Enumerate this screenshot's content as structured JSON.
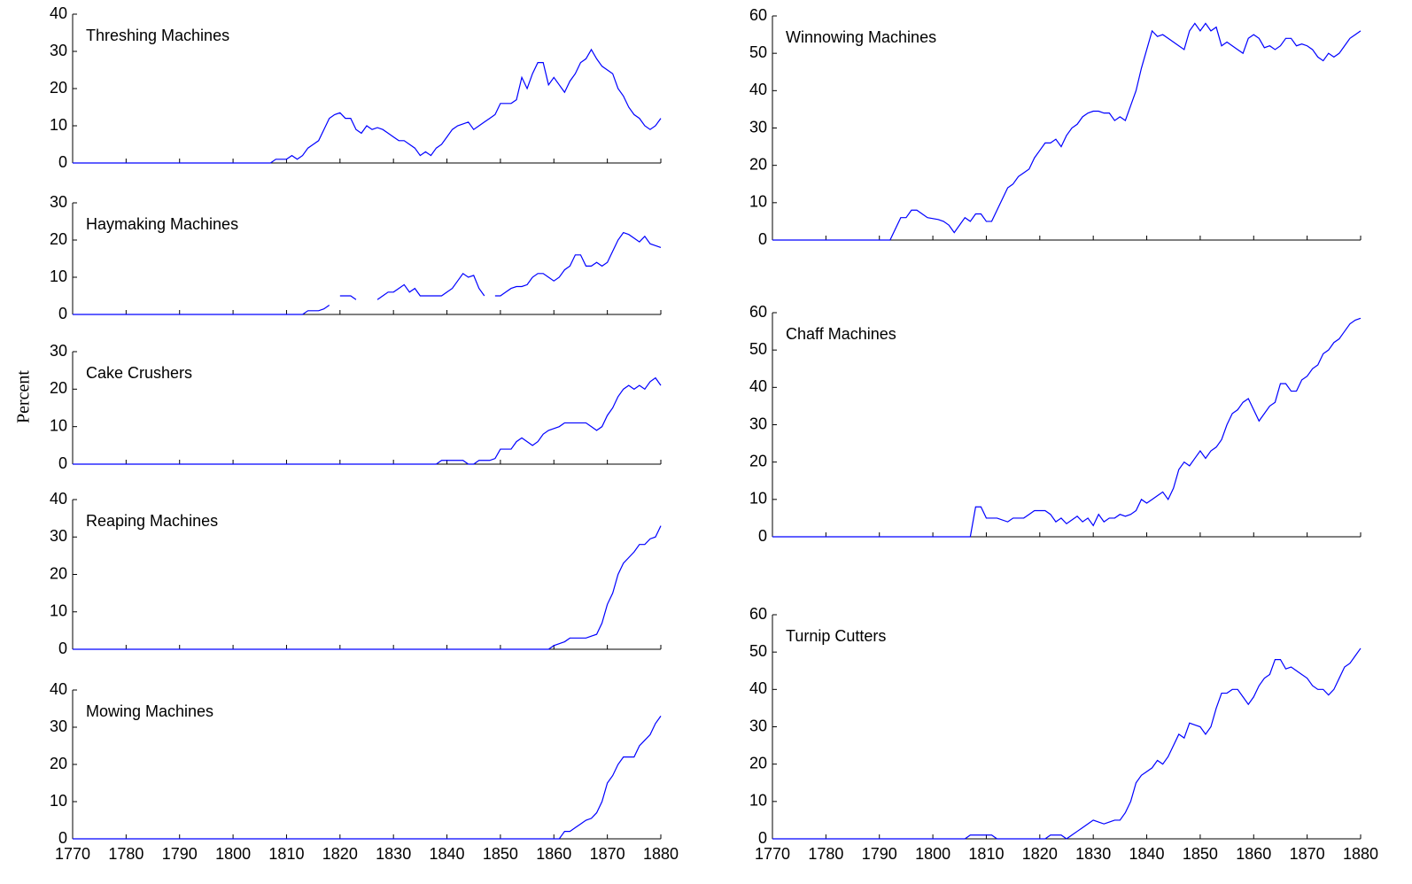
{
  "ylabel": "Percent",
  "chart_data": [
    {
      "type": "line",
      "title": "Threshing Machines",
      "xlim": [
        1770,
        1880
      ],
      "ylim": [
        0,
        40
      ],
      "yticks": [
        0,
        10,
        20,
        30,
        40
      ],
      "series": [
        {
          "name": "Threshing Machines",
          "color": "#0000ff",
          "x": [
            1770,
            1807,
            1808,
            1810,
            1811,
            1812,
            1813,
            1814,
            1815,
            1816,
            1817,
            1818,
            1819,
            1820,
            1821,
            1822,
            1823,
            1824,
            1825,
            1826,
            1827,
            1828,
            1829,
            1830,
            1831,
            1832,
            1833,
            1834,
            1835,
            1836,
            1837,
            1838,
            1839,
            1840,
            1841,
            1842,
            1843,
            1844,
            1845,
            1846,
            1847,
            1848,
            1849,
            1850,
            1851,
            1852,
            1853,
            1854,
            1855,
            1856,
            1857,
            1858,
            1859,
            1860,
            1861,
            1862,
            1863,
            1864,
            1865,
            1866,
            1867,
            1868,
            1869,
            1870,
            1871,
            1872,
            1873,
            1874,
            1875,
            1876,
            1877,
            1878,
            1879,
            1880
          ],
          "values": [
            0,
            0,
            1,
            1,
            2,
            1,
            2,
            4,
            5,
            6,
            9,
            12,
            13,
            13.5,
            12,
            12,
            9,
            8,
            10,
            9,
            9.5,
            9,
            8,
            7,
            6,
            6,
            5,
            4,
            2,
            3,
            2,
            4,
            5,
            7,
            9,
            10,
            10.5,
            11,
            9,
            10,
            11,
            12,
            13,
            16,
            16,
            16,
            17,
            23,
            20,
            24,
            27,
            27,
            21,
            23,
            21,
            19,
            22,
            24,
            27,
            28,
            30.5,
            28,
            26,
            25,
            24,
            20,
            18,
            15,
            13,
            12,
            10,
            9,
            10,
            12
          ]
        }
      ]
    },
    {
      "type": "line",
      "title": "Haymaking Machines",
      "xlim": [
        1770,
        1880
      ],
      "ylim": [
        0,
        30
      ],
      "yticks": [
        0,
        10,
        20,
        30
      ],
      "series": [
        {
          "name": "Haymaking Machines",
          "color": "#0000ff",
          "x": [
            1770,
            1813,
            1814,
            1816,
            1817,
            1818,
            1819,
            1820,
            1822,
            1823,
            1824,
            1827,
            1828,
            1829,
            1830,
            1831,
            1832,
            1833,
            1834,
            1835,
            1836,
            1839,
            1840,
            1841,
            1842,
            1843,
            1844,
            1845,
            1846,
            1847,
            1848,
            1849,
            1850,
            1851,
            1852,
            1853,
            1854,
            1855,
            1856,
            1857,
            1858,
            1859,
            1860,
            1861,
            1862,
            1863,
            1864,
            1865,
            1866,
            1867,
            1868,
            1869,
            1870,
            1871,
            1872,
            1873,
            1874,
            1875,
            1876,
            1877,
            1878,
            1879,
            1880
          ],
          "values": [
            0,
            0,
            1,
            1,
            1.5,
            2.5,
            null,
            5,
            5,
            4,
            null,
            4,
            5,
            6,
            6,
            7,
            8,
            6,
            7,
            5,
            5,
            5,
            6,
            7,
            9,
            11,
            10,
            10.5,
            7,
            5,
            null,
            5,
            5,
            6,
            7,
            7.5,
            7.5,
            8,
            10,
            11,
            11,
            10,
            9,
            10,
            12,
            13,
            16,
            16,
            13,
            13,
            14,
            13,
            14,
            17,
            20,
            22,
            21.5,
            20.5,
            19.5,
            21,
            19,
            18.5,
            18
          ]
        }
      ]
    },
    {
      "type": "line",
      "title": "Cake Crushers",
      "xlim": [
        1770,
        1880
      ],
      "ylim": [
        0,
        30
      ],
      "yticks": [
        0,
        10,
        20,
        30
      ],
      "series": [
        {
          "name": "Cake Crushers",
          "color": "#0000ff",
          "x": [
            1770,
            1838,
            1839,
            1842,
            1843,
            1844,
            1845,
            1846,
            1848,
            1849,
            1850,
            1852,
            1853,
            1854,
            1855,
            1856,
            1857,
            1858,
            1859,
            1860,
            1861,
            1862,
            1866,
            1867,
            1868,
            1869,
            1870,
            1871,
            1872,
            1873,
            1874,
            1875,
            1876,
            1877,
            1878,
            1879,
            1880
          ],
          "values": [
            0,
            0,
            1,
            1,
            1,
            0,
            0,
            1,
            1,
            1.5,
            4,
            4,
            6,
            7,
            6,
            5,
            6,
            8,
            9,
            9.5,
            10,
            11,
            11,
            10,
            9,
            10,
            13,
            15,
            18,
            20,
            21,
            20,
            21,
            20,
            22,
            23,
            21
          ]
        }
      ]
    },
    {
      "type": "line",
      "title": "Reaping Machines",
      "xlim": [
        1770,
        1880
      ],
      "ylim": [
        0,
        40
      ],
      "yticks": [
        0,
        10,
        20,
        30,
        40
      ],
      "series": [
        {
          "name": "Reaping Machines",
          "color": "#0000ff",
          "x": [
            1770,
            1859,
            1860,
            1861,
            1862,
            1863,
            1866,
            1867,
            1868,
            1869,
            1870,
            1871,
            1872,
            1873,
            1874,
            1875,
            1876,
            1877,
            1878,
            1879,
            1880
          ],
          "values": [
            0,
            0,
            1,
            1.5,
            2,
            3,
            3,
            3.5,
            4,
            7,
            12,
            15,
            20,
            23,
            24.5,
            26,
            28,
            28,
            29.5,
            30,
            33
          ]
        }
      ]
    },
    {
      "type": "line",
      "title": "Mowing Machines",
      "xlim": [
        1770,
        1880
      ],
      "ylim": [
        0,
        40
      ],
      "yticks": [
        0,
        10,
        20,
        30,
        40
      ],
      "xticks": [
        1770,
        1780,
        1790,
        1800,
        1810,
        1820,
        1830,
        1840,
        1850,
        1860,
        1870,
        1880
      ],
      "series": [
        {
          "name": "Mowing Machines",
          "color": "#0000ff",
          "x": [
            1770,
            1861,
            1862,
            1863,
            1864,
            1865,
            1866,
            1867,
            1868,
            1869,
            1870,
            1871,
            1872,
            1873,
            1875,
            1876,
            1877,
            1878,
            1879,
            1880
          ],
          "values": [
            0,
            0,
            2,
            2,
            3,
            4,
            5,
            5.5,
            7,
            10,
            15,
            17,
            20,
            22,
            22,
            25,
            26.5,
            28,
            31,
            33
          ]
        }
      ]
    },
    {
      "type": "line",
      "title": "Winnowing Machines",
      "xlim": [
        1770,
        1880
      ],
      "ylim": [
        0,
        60
      ],
      "yticks": [
        0,
        10,
        20,
        30,
        40,
        50,
        60
      ],
      "series": [
        {
          "name": "Winnowing Machines",
          "color": "#0000ff",
          "x": [
            1770,
            1792,
            1794,
            1795,
            1796,
            1797,
            1798,
            1799,
            1801,
            1802,
            1803,
            1804,
            1805,
            1806,
            1807,
            1808,
            1809,
            1810,
            1811,
            1812,
            1813,
            1814,
            1815,
            1816,
            1817,
            1818,
            1819,
            1820,
            1821,
            1822,
            1823,
            1824,
            1825,
            1826,
            1827,
            1828,
            1829,
            1830,
            1831,
            1832,
            1833,
            1834,
            1835,
            1836,
            1837,
            1838,
            1839,
            1840,
            1841,
            1842,
            1843,
            1844,
            1845,
            1846,
            1847,
            1848,
            1849,
            1850,
            1851,
            1852,
            1853,
            1854,
            1855,
            1856,
            1857,
            1858,
            1859,
            1860,
            1861,
            1862,
            1863,
            1864,
            1865,
            1866,
            1867,
            1868,
            1869,
            1870,
            1871,
            1872,
            1873,
            1874,
            1875,
            1876,
            1877,
            1878,
            1879,
            1880
          ],
          "values": [
            0,
            0,
            6,
            6,
            8,
            8,
            7,
            6,
            5.5,
            5,
            4,
            2,
            4,
            6,
            5,
            7,
            7,
            5,
            5,
            8,
            11,
            14,
            15,
            17,
            18,
            19,
            22,
            24,
            26,
            26,
            27,
            25,
            28,
            30,
            31,
            33,
            34,
            34.5,
            34.5,
            34,
            34,
            32,
            33,
            32,
            36,
            40,
            46,
            51,
            56,
            54.5,
            55,
            54,
            53,
            52,
            51,
            56,
            58,
            56,
            58,
            56,
            57,
            52,
            53,
            52,
            51,
            50,
            54,
            55,
            54,
            51.5,
            52,
            51,
            52,
            54,
            54,
            52,
            52.5,
            52,
            51,
            49,
            48,
            50,
            49,
            50,
            52,
            54,
            55,
            56
          ]
        }
      ]
    },
    {
      "type": "line",
      "title": "Chaff Machines",
      "xlim": [
        1770,
        1880
      ],
      "ylim": [
        0,
        60
      ],
      "yticks": [
        0,
        10,
        20,
        30,
        40,
        50,
        60
      ],
      "series": [
        {
          "name": "Chaff Machines",
          "color": "#0000ff",
          "x": [
            1770,
            1807,
            1808,
            1809,
            1810,
            1812,
            1814,
            1815,
            1817,
            1818,
            1819,
            1821,
            1822,
            1823,
            1824,
            1825,
            1826,
            1827,
            1828,
            1829,
            1830,
            1831,
            1832,
            1833,
            1834,
            1835,
            1836,
            1837,
            1838,
            1839,
            1840,
            1841,
            1842,
            1843,
            1844,
            1845,
            1846,
            1847,
            1848,
            1849,
            1850,
            1851,
            1852,
            1853,
            1854,
            1855,
            1856,
            1857,
            1858,
            1859,
            1860,
            1861,
            1862,
            1863,
            1864,
            1865,
            1866,
            1867,
            1868,
            1869,
            1870,
            1871,
            1872,
            1873,
            1874,
            1875,
            1876,
            1877,
            1878,
            1879,
            1880
          ],
          "values": [
            0,
            0,
            8,
            8,
            5,
            5,
            4,
            5,
            5,
            6,
            7,
            7,
            6,
            4,
            5,
            3.5,
            4.5,
            5.5,
            4,
            5,
            3,
            6,
            4,
            5,
            5,
            6,
            5.5,
            6,
            7,
            10,
            9,
            10,
            11,
            12,
            10,
            13,
            18,
            20,
            19,
            21,
            23,
            21,
            23,
            24,
            26,
            30,
            33,
            34,
            36,
            37,
            34,
            31,
            33,
            35,
            36,
            41,
            41,
            39,
            39,
            42,
            43,
            45,
            46,
            49,
            50,
            52,
            53,
            55,
            57,
            58,
            58.5
          ]
        }
      ]
    },
    {
      "type": "line",
      "title": "Turnip Cutters",
      "xlim": [
        1770,
        1880
      ],
      "ylim": [
        0,
        60
      ],
      "yticks": [
        0,
        10,
        20,
        30,
        40,
        50,
        60
      ],
      "xticks": [
        1770,
        1780,
        1790,
        1800,
        1810,
        1820,
        1830,
        1840,
        1850,
        1860,
        1870,
        1880
      ],
      "series": [
        {
          "name": "Turnip Cutters",
          "color": "#0000ff",
          "x": [
            1770,
            1806,
            1807,
            1811,
            1812,
            1821,
            1822,
            1824,
            1825,
            1826,
            1827,
            1828,
            1829,
            1830,
            1831,
            1832,
            1833,
            1834,
            1835,
            1836,
            1837,
            1838,
            1839,
            1840,
            1841,
            1842,
            1843,
            1844,
            1845,
            1846,
            1847,
            1848,
            1849,
            1850,
            1851,
            1852,
            1853,
            1854,
            1855,
            1856,
            1857,
            1858,
            1859,
            1860,
            1861,
            1862,
            1863,
            1864,
            1865,
            1866,
            1867,
            1868,
            1869,
            1870,
            1871,
            1872,
            1873,
            1874,
            1875,
            1876,
            1877,
            1878,
            1879,
            1880
          ],
          "values": [
            0,
            0,
            1,
            1,
            0,
            0,
            1,
            1,
            0,
            1,
            2,
            3,
            4,
            5,
            4.5,
            4,
            4.5,
            5,
            5,
            7,
            10,
            15,
            17,
            18,
            19,
            21,
            20,
            22,
            25,
            28,
            27,
            31,
            30.5,
            30,
            28,
            30,
            35,
            39,
            39,
            40,
            40,
            38,
            36,
            38,
            41,
            43,
            44,
            48,
            48,
            45.5,
            46,
            45,
            44,
            43,
            41,
            40,
            40,
            38.5,
            40,
            43,
            46,
            47,
            49,
            51
          ]
        }
      ]
    }
  ]
}
